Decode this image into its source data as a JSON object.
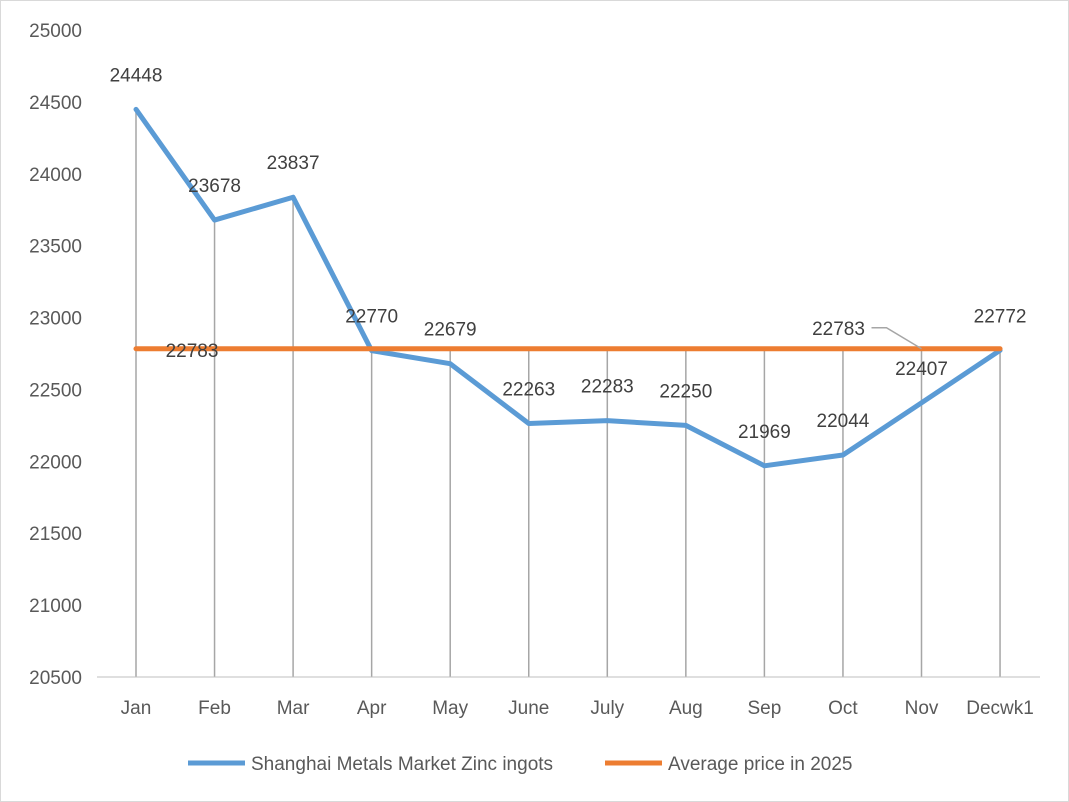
{
  "chart_data": {
    "type": "line",
    "categories": [
      "Jan",
      "Feb",
      "Mar",
      "Apr",
      "May",
      "June",
      "July",
      "Aug",
      "Sep",
      "Oct",
      "Nov",
      "Decwk1"
    ],
    "series": [
      {
        "name": "Shanghai Metals Market Zinc ingots",
        "color": "#5B9BD5",
        "values": [
          24448,
          23678,
          23837,
          22770,
          22679,
          22263,
          22283,
          22250,
          21969,
          22044,
          22407,
          22772
        ],
        "data_labels": "all"
      },
      {
        "name": "Average price in 2025",
        "color": "#ED7D31",
        "values": [
          22783,
          22783,
          22783,
          22783,
          22783,
          22783,
          22783,
          22783,
          22783,
          22783,
          22783,
          22783
        ],
        "data_labels": [
          "Jan",
          "Nov"
        ]
      }
    ],
    "ylim": [
      20500,
      25000
    ],
    "yticks": [
      20500,
      21000,
      21500,
      22000,
      22500,
      23000,
      23500,
      24000,
      24500,
      25000
    ],
    "drop_lines": true,
    "grid": false,
    "legend": "bottom"
  }
}
